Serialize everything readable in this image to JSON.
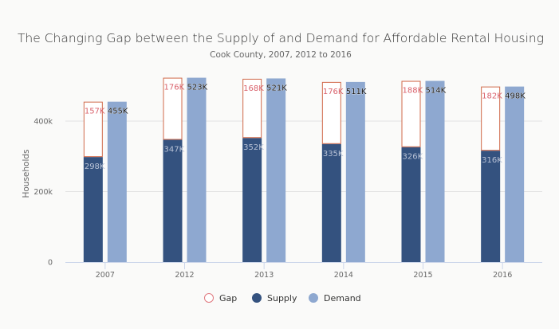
{
  "chart_data": {
    "type": "bar",
    "title": "The Changing Gap between the Supply of and Demand for Affordable Rental Housing",
    "subtitle": "Cook County, 2007, 2012 to 2016",
    "xlabel": "",
    "ylabel": "Households",
    "ylim": [
      0,
      500000
    ],
    "yticks": [
      0,
      200000,
      400000
    ],
    "ytick_labels": [
      "0",
      "200k",
      "400k"
    ],
    "grid": true,
    "categories": [
      "2007",
      "2012",
      "2013",
      "2014",
      "2015",
      "2016"
    ],
    "series": [
      {
        "name": "Supply",
        "stack": "a",
        "values": [
          298000,
          347000,
          352000,
          335000,
          326000,
          316000
        ],
        "labels": [
          "298K",
          "347K",
          "352K",
          "335K",
          "326K",
          "316K"
        ],
        "color": "#34527f",
        "style": "filled"
      },
      {
        "name": "Gap",
        "stack": "a",
        "values": [
          157000,
          176000,
          168000,
          176000,
          188000,
          182000
        ],
        "labels": [
          "157K",
          "176K",
          "168K",
          "176K",
          "188K",
          "182K"
        ],
        "color": "#d0694a",
        "label_color": "#d9616b",
        "style": "outline"
      },
      {
        "name": "Demand",
        "stack": "b",
        "values": [
          455000,
          523000,
          521000,
          511000,
          514000,
          498000
        ],
        "labels": [
          "455K",
          "523K",
          "521K",
          "511K",
          "514K",
          "498K"
        ],
        "color": "#8ea8d0",
        "style": "filled"
      }
    ],
    "legend": {
      "position": "bottom",
      "items": [
        {
          "name": "Gap",
          "marker": "hollow-circle",
          "color": "#e07a80"
        },
        {
          "name": "Supply",
          "marker": "circle",
          "color": "#34527f"
        },
        {
          "name": "Demand",
          "marker": "circle",
          "color": "#8ea8d0"
        }
      ]
    }
  }
}
